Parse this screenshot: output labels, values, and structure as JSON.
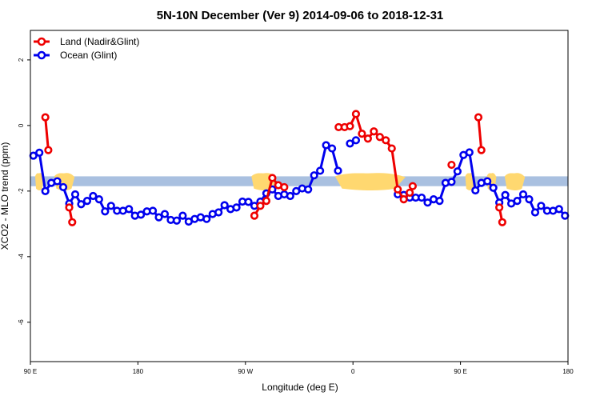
{
  "chart_data": {
    "type": "line",
    "title": "5N-10N December (Ver 9)   2014-09-06 to 2018-12-31",
    "xlabel": "Longitude (deg E)",
    "ylabel": "XCO2 - MLO trend (ppm)",
    "xlim": [
      90,
      540
    ],
    "ylim": [
      -7.2,
      2.9
    ],
    "x_ticks": [
      {
        "value": 90,
        "label": "90 E"
      },
      {
        "value": 180,
        "label": "180"
      },
      {
        "value": 270,
        "label": "90 W"
      },
      {
        "value": 360,
        "label": "0"
      },
      {
        "value": 450,
        "label": "90 E"
      },
      {
        "value": 540,
        "label": "180"
      }
    ],
    "y_ticks": [
      {
        "value": 2,
        "label": "2"
      },
      {
        "value": 0,
        "label": "0"
      },
      {
        "value": -2,
        "label": "-2"
      },
      {
        "value": -4,
        "label": "-4"
      },
      {
        "value": -6,
        "label": "-6"
      }
    ],
    "legend_position": "top-left",
    "band": {
      "y_low": -1.85,
      "y_high": -1.55,
      "color": "#a9c0e0"
    },
    "land_regions": [
      {
        "from": 94,
        "to": 101
      },
      {
        "from": 110,
        "to": 127
      },
      {
        "from": 275,
        "to": 296
      },
      {
        "from": 345,
        "to": 404
      },
      {
        "from": 454,
        "to": 462
      },
      {
        "from": 472,
        "to": 480
      },
      {
        "from": 487,
        "to": 504
      }
    ],
    "land_color": "#ffd870",
    "series": [
      {
        "name": "Ocean (Glint)",
        "color": "#0000ee",
        "segments": [
          [
            [
              92.5,
              -0.92
            ],
            [
              97.5,
              -0.83
            ],
            [
              102.5,
              -2.0
            ],
            [
              107.5,
              -1.75
            ],
            [
              112.5,
              -1.7
            ],
            [
              117.5,
              -1.88
            ],
            [
              122.5,
              -2.38
            ],
            [
              127.5,
              -2.1
            ],
            [
              132.5,
              -2.4
            ],
            [
              137.5,
              -2.3
            ],
            [
              142.5,
              -2.15
            ],
            [
              147.5,
              -2.25
            ],
            [
              152.5,
              -2.62
            ],
            [
              157.5,
              -2.45
            ],
            [
              162.5,
              -2.6
            ],
            [
              167.5,
              -2.6
            ],
            [
              172.5,
              -2.55
            ],
            [
              177.5,
              -2.75
            ],
            [
              182.5,
              -2.72
            ],
            [
              187.5,
              -2.62
            ],
            [
              192.5,
              -2.6
            ],
            [
              197.5,
              -2.8
            ],
            [
              202.5,
              -2.7
            ],
            [
              207.5,
              -2.88
            ],
            [
              212.5,
              -2.9
            ],
            [
              217.5,
              -2.75
            ],
            [
              222.5,
              -2.93
            ],
            [
              227.5,
              -2.85
            ],
            [
              232.5,
              -2.8
            ],
            [
              237.5,
              -2.85
            ],
            [
              242.5,
              -2.7
            ],
            [
              247.5,
              -2.65
            ],
            [
              252.5,
              -2.43
            ],
            [
              257.5,
              -2.55
            ],
            [
              262.5,
              -2.5
            ],
            [
              267.5,
              -2.32
            ],
            [
              272.5,
              -2.33
            ],
            [
              277.5,
              -2.45
            ],
            [
              282.5,
              -2.32
            ],
            [
              287.5,
              -2.07
            ],
            [
              292.5,
              -1.95
            ],
            [
              297.5,
              -2.15
            ],
            [
              302.5,
              -2.1
            ],
            [
              307.5,
              -2.15
            ],
            [
              312.5,
              -2.0
            ],
            [
              317.5,
              -1.92
            ],
            [
              322.5,
              -1.95
            ],
            [
              327.5,
              -1.52
            ],
            [
              332.5,
              -1.38
            ],
            [
              337.5,
              -0.6
            ],
            [
              342.5,
              -0.7
            ],
            [
              347.5,
              -1.38
            ]
          ],
          [
            [
              357.5,
              -0.55
            ],
            [
              362.5,
              -0.45
            ]
          ],
          [
            [
              397.5,
              -2.1
            ],
            [
              402.5,
              -2.12
            ],
            [
              407.5,
              -2.2
            ],
            [
              412.5,
              -2.2
            ],
            [
              417.5,
              -2.2
            ],
            [
              422.5,
              -2.35
            ],
            [
              427.5,
              -2.25
            ],
            [
              432.5,
              -2.3
            ],
            [
              437.5,
              -1.75
            ],
            [
              442.5,
              -1.72
            ],
            [
              447.5,
              -1.4
            ],
            [
              452.5,
              -0.9
            ],
            [
              457.5,
              -0.82
            ],
            [
              462.5,
              -1.98
            ],
            [
              467.5,
              -1.75
            ],
            [
              472.5,
              -1.7
            ],
            [
              477.5,
              -1.9
            ],
            [
              482.5,
              -2.35
            ],
            [
              487.5,
              -2.12
            ],
            [
              492.5,
              -2.38
            ],
            [
              497.5,
              -2.3
            ],
            [
              502.5,
              -2.1
            ],
            [
              507.5,
              -2.25
            ],
            [
              512.5,
              -2.65
            ],
            [
              517.5,
              -2.45
            ],
            [
              522.5,
              -2.6
            ],
            [
              527.5,
              -2.6
            ],
            [
              532.5,
              -2.55
            ],
            [
              537.5,
              -2.75
            ]
          ]
        ]
      },
      {
        "name": "Land (Nadir&Glint)",
        "color": "#ee0000",
        "segments": [
          [
            [
              102.5,
              0.25
            ],
            [
              105,
              -0.75
            ]
          ],
          [
            [
              122.5,
              -2.5
            ],
            [
              125,
              -2.95
            ]
          ],
          [
            [
              277.5,
              -2.75
            ],
            [
              282.5,
              -2.45
            ],
            [
              287.5,
              -2.3
            ],
            [
              292.5,
              -1.6
            ],
            [
              297.5,
              -1.82
            ],
            [
              302.5,
              -1.88
            ]
          ],
          [
            [
              348,
              -0.05
            ],
            [
              353,
              -0.05
            ],
            [
              357.5,
              -0.02
            ],
            [
              362.5,
              0.35
            ],
            [
              367.5,
              -0.25
            ],
            [
              372.5,
              -0.4
            ],
            [
              377.5,
              -0.18
            ],
            [
              382.5,
              -0.35
            ],
            [
              387.5,
              -0.45
            ],
            [
              392.5,
              -0.7
            ],
            [
              397.5,
              -1.95
            ],
            [
              402.5,
              -2.25
            ],
            [
              407.5,
              -2.05
            ],
            [
              410,
              -1.85
            ]
          ],
          [
            [
              442.5,
              -1.2
            ]
          ],
          [
            [
              465,
              0.25
            ],
            [
              467.5,
              -0.75
            ]
          ],
          [
            [
              482.5,
              -2.5
            ],
            [
              485,
              -2.95
            ]
          ]
        ]
      }
    ]
  }
}
